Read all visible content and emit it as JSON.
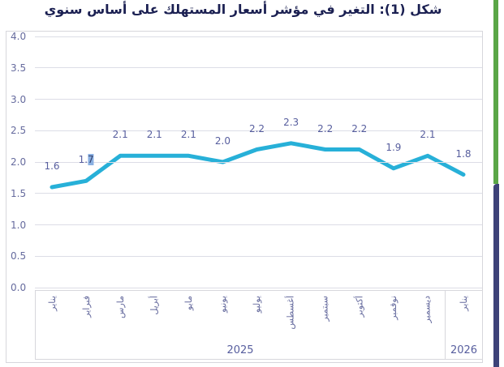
{
  "title": "شكل (1): التغير في مؤشر أسعار المستهلك على أساس سنوي",
  "chart_data": {
    "type": "line",
    "title": "شكل (1): التغير في مؤشر أسعار المستهلك على أساس سنوي",
    "categories": [
      "يناير",
      "فبراير",
      "مارس",
      "أبريل",
      "مايو",
      "يونيو",
      "يوليو",
      "أغسطس",
      "سبتمبر",
      "أكتوبر",
      "نوفمبر",
      "ديسمبر",
      "يناير"
    ],
    "year_groups": [
      {
        "label": "2025",
        "months": 12
      },
      {
        "label": "2026",
        "months": 1
      }
    ],
    "series": [
      {
        "name": "التغير في مؤشر أسعار المستهلك على أساس سنوي",
        "values": [
          1.6,
          1.7,
          2.1,
          2.1,
          2.1,
          2.0,
          2.2,
          2.3,
          2.2,
          2.2,
          1.9,
          2.1,
          1.8
        ]
      }
    ],
    "value_labels": [
      "1.6",
      "1.7",
      "2.1",
      "2.1",
      "2.1",
      "2.0",
      "2.2",
      "2.3",
      "2.2",
      "2.2",
      "1.9",
      "2.1",
      "1.8"
    ],
    "selection": {
      "point_index": 1,
      "label_before": "1.",
      "label_highlighted": "7",
      "label_after": ""
    },
    "ylim": [
      0,
      4
    ],
    "yticks": [
      "4.0",
      "3.5",
      "3.0",
      "2.5",
      "2.0",
      "1.5",
      "1.0",
      "0.5",
      "0.0"
    ],
    "grid": true,
    "legend": "none",
    "colors": {
      "line": "#27b0d8",
      "value_labels": "#575e9e",
      "axis_labels": "#666b9e",
      "gridline": "#dcdde6",
      "title": "#1b2052",
      "selection_highlight": "#8ab0e2"
    }
  },
  "decor": {
    "right_strip_top_color": "#5aa647",
    "right_strip_bottom_color": "#3d4278"
  }
}
